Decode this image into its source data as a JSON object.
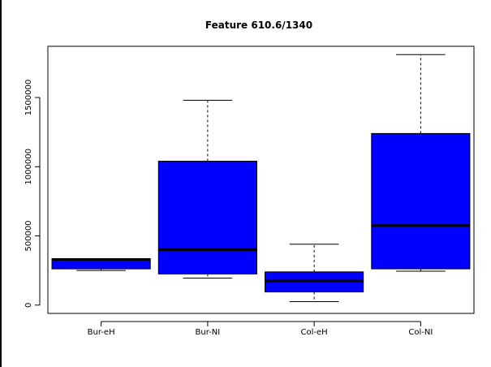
{
  "chart_data": {
    "type": "boxplot",
    "title": "Feature  610.6/1340",
    "xlabel": "",
    "ylabel": "",
    "categories": [
      "Bur-eH",
      "Bur-NI",
      "Col-eH",
      "Col-NI"
    ],
    "boxes": [
      {
        "category": "Bur-eH",
        "whisker_low": 250000,
        "q1": 262000,
        "median": 330000,
        "q3": 335000,
        "whisker_high": 335000
      },
      {
        "category": "Bur-NI",
        "whisker_low": 195000,
        "q1": 225000,
        "median": 400000,
        "q3": 1040000,
        "whisker_high": 1480000
      },
      {
        "category": "Col-eH",
        "whisker_low": 25000,
        "q1": 95000,
        "median": 175000,
        "q3": 240000,
        "whisker_high": 440000
      },
      {
        "category": "Col-NI",
        "whisker_low": 245000,
        "q1": 262000,
        "median": 575000,
        "q3": 1240000,
        "whisker_high": 1810000
      }
    ],
    "yticks": [
      0,
      500000,
      1000000,
      1500000
    ],
    "ytick_labels": [
      "0",
      "500000",
      "1000000",
      "1500000"
    ],
    "ylim": [
      -60000,
      1870000
    ],
    "box_color": "#0000ff",
    "grid": false,
    "legend": "none"
  }
}
